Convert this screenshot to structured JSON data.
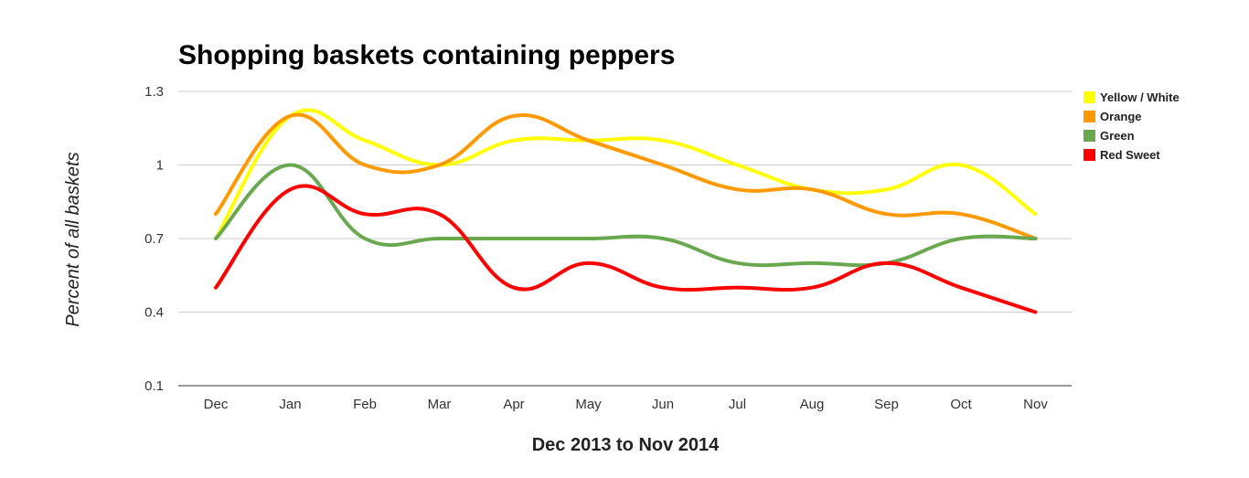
{
  "chart_data": {
    "type": "line",
    "title": "Shopping baskets containing peppers",
    "xlabel": "Dec 2013 to Nov 2014",
    "ylabel": "Percent of all baskets",
    "categories": [
      "Dec",
      "Jan",
      "Feb",
      "Mar",
      "Apr",
      "May",
      "Jun",
      "Jul",
      "Aug",
      "Sep",
      "Oct",
      "Nov"
    ],
    "yticks": [
      "0.1",
      "0.4",
      "0.7",
      "1",
      "1.3"
    ],
    "ytick_values": [
      0.1,
      0.4,
      0.7,
      1.0,
      1.3
    ],
    "ylim": [
      0.1,
      1.3
    ],
    "grid": true,
    "legend_position": "right",
    "series": [
      {
        "name": "Yellow / White",
        "color": "#ffff00",
        "values": [
          0.7,
          1.2,
          1.1,
          1.0,
          1.1,
          1.1,
          1.1,
          1.0,
          0.9,
          0.9,
          1.0,
          0.8
        ]
      },
      {
        "name": "Orange",
        "color": "#ff9900",
        "values": [
          0.8,
          1.2,
          1.0,
          1.0,
          1.2,
          1.1,
          1.0,
          0.9,
          0.9,
          0.8,
          0.8,
          0.7
        ]
      },
      {
        "name": "Green",
        "color": "#6aa84f",
        "values": [
          0.7,
          1.0,
          0.7,
          0.7,
          0.7,
          0.7,
          0.7,
          0.6,
          0.6,
          0.6,
          0.7,
          0.7
        ]
      },
      {
        "name": "Red Sweet",
        "color": "#ff0000",
        "values": [
          0.5,
          0.9,
          0.8,
          0.8,
          0.5,
          0.6,
          0.5,
          0.5,
          0.5,
          0.6,
          0.5,
          0.4
        ]
      }
    ]
  }
}
